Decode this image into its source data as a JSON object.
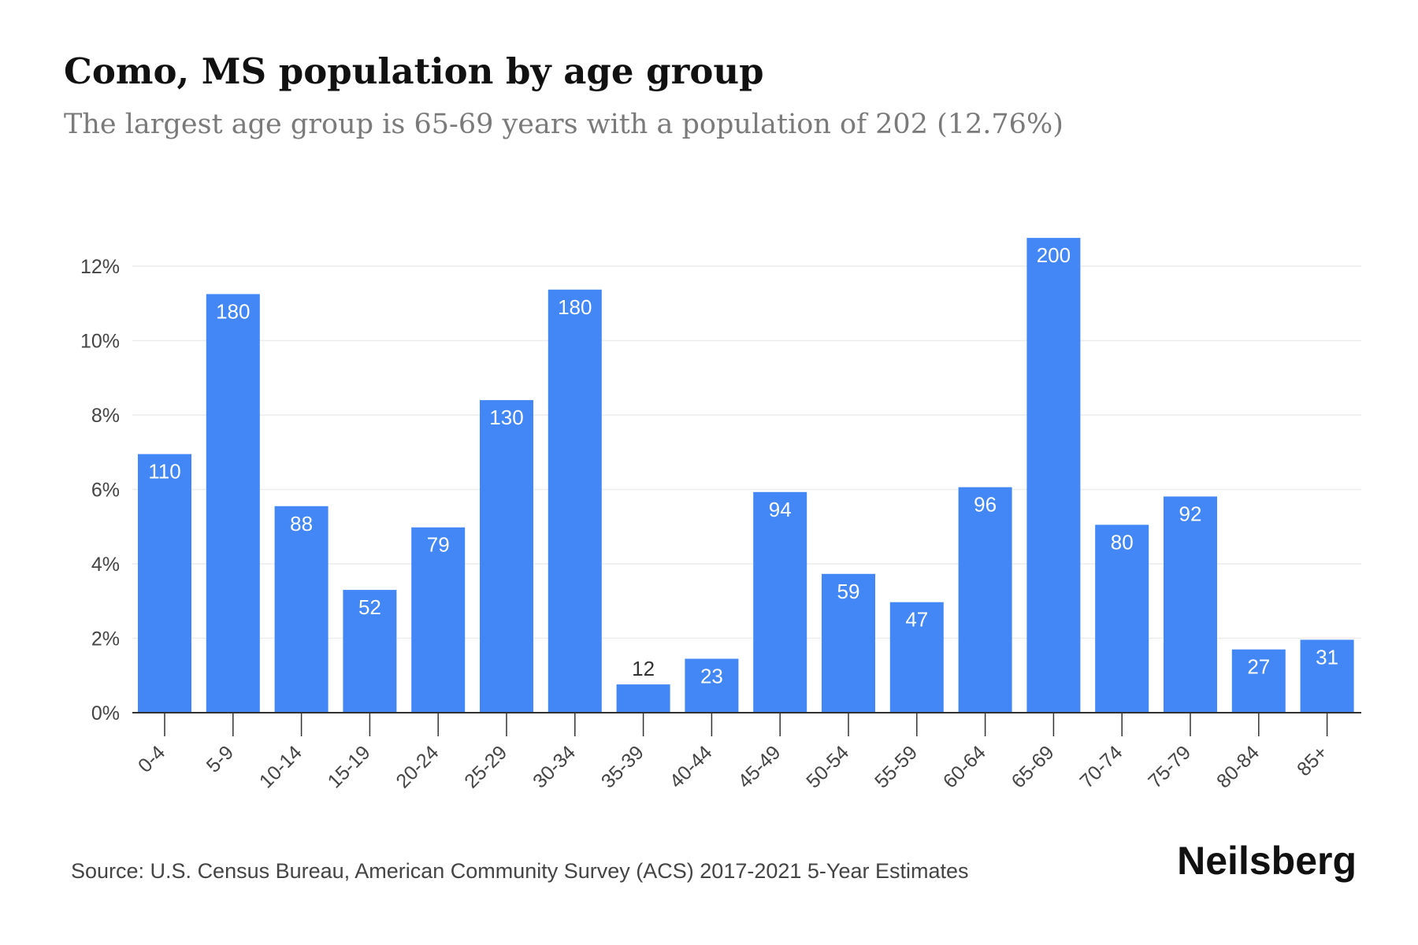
{
  "colors": {
    "bar": "#4287f5",
    "grid": "#ececec",
    "axis": "#333333",
    "label_inside": "#ffffff",
    "label_outside": "#333333"
  },
  "chart_data": {
    "type": "bar",
    "title": "Como, MS population by age group",
    "subtitle": "The largest age group is 65-69 years with a population of 202 (12.76%)",
    "categories": [
      "0-4",
      "5-9",
      "10-14",
      "15-19",
      "20-24",
      "25-29",
      "30-34",
      "35-39",
      "40-44",
      "45-49",
      "50-54",
      "55-59",
      "60-64",
      "65-69",
      "70-74",
      "75-79",
      "80-84",
      "85+"
    ],
    "percents": [
      6.95,
      11.25,
      5.55,
      3.3,
      4.98,
      8.4,
      11.37,
      0.76,
      1.45,
      5.93,
      3.73,
      2.97,
      6.06,
      12.76,
      5.05,
      5.81,
      1.7,
      1.96
    ],
    "labels": [
      "110",
      "180",
      "88",
      "52",
      "79",
      "130",
      "180",
      "12",
      "23",
      "94",
      "59",
      "47",
      "96",
      "200",
      "80",
      "92",
      "27",
      "31"
    ],
    "ylim": [
      0,
      12
    ],
    "yticks": [
      0,
      2,
      4,
      6,
      8,
      10,
      12
    ],
    "ytick_labels": [
      "0%",
      "2%",
      "4%",
      "6%",
      "8%",
      "10%",
      "12%"
    ],
    "xlabel": "",
    "ylabel": ""
  },
  "footer": {
    "source": "Source: U.S. Census Bureau, American Community Survey (ACS) 2017-2021 5-Year Estimates",
    "brand": "Neilsberg"
  }
}
